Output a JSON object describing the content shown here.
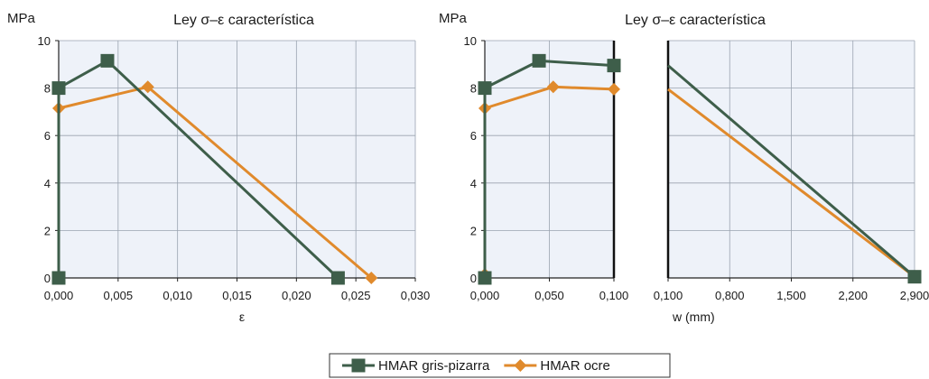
{
  "colors": {
    "green": "#3e5e4a",
    "orange": "#e08a2c",
    "plot_bg": "#eef2f9",
    "grid": "#9aa3b0"
  },
  "legend": [
    {
      "label": "HMAR gris-pizarra",
      "marker": "square",
      "color": "#3e5e4a"
    },
    {
      "label": "HMAR ocre",
      "marker": "diamond",
      "color": "#e08a2c"
    }
  ],
  "chart_data": [
    {
      "type": "line",
      "title": "Ley σ–ε característica",
      "ylabel": "MPa",
      "xlabel": "ε",
      "xlim": [
        0,
        0.03
      ],
      "ylim": [
        0,
        10
      ],
      "xticks": [
        0,
        0.005,
        0.01,
        0.015,
        0.02,
        0.025,
        0.03
      ],
      "xtick_labels": [
        "0,000",
        "0,005",
        "0,010",
        "0,015",
        "0,020",
        "0,025",
        "0,030"
      ],
      "yticks": [
        0,
        2,
        4,
        6,
        8,
        10
      ],
      "ytick_labels": [
        "0",
        "2",
        "4",
        "6",
        "8",
        "10"
      ],
      "grid": true,
      "series": [
        {
          "name": "HMAR gris-pizarra",
          "marker": "square",
          "x": [
            0,
            0,
            0.0041,
            0.0235
          ],
          "y": [
            0,
            8.0,
            9.15,
            0
          ]
        },
        {
          "name": "HMAR ocre",
          "marker": "diamond",
          "x": [
            0,
            0,
            0.0075,
            0.0263
          ],
          "y": [
            0,
            7.15,
            8.05,
            0
          ]
        }
      ]
    },
    {
      "type": "line",
      "title": "Ley σ–ε característica",
      "ylabel": "MPa",
      "xlabel": "",
      "xlim": [
        0,
        0.1
      ],
      "ylim": [
        0,
        10
      ],
      "xticks": [
        0,
        0.05,
        0.1
      ],
      "xtick_labels": [
        "0,000",
        "0,050",
        "0,100"
      ],
      "yticks": [
        0,
        2,
        4,
        6,
        8,
        10
      ],
      "ytick_labels": [
        "0",
        "2",
        "4",
        "6",
        "8",
        "10"
      ],
      "grid": true,
      "series": [
        {
          "name": "HMAR gris-pizarra",
          "marker": "square",
          "x": [
            0,
            0,
            0.042,
            0.1
          ],
          "y": [
            0,
            8.0,
            9.15,
            8.95
          ]
        },
        {
          "name": "HMAR ocre",
          "marker": "diamond",
          "x": [
            0,
            0,
            0.053,
            0.1
          ],
          "y": [
            0.15,
            7.15,
            8.05,
            7.95
          ]
        }
      ]
    },
    {
      "type": "line",
      "title": "",
      "ylabel": "",
      "xlabel": "w (mm)",
      "xlim": [
        0.1,
        2.9
      ],
      "ylim": [
        0,
        10
      ],
      "xticks": [
        0.1,
        0.8,
        1.5,
        2.2,
        2.9
      ],
      "xtick_labels": [
        "0,100",
        "0,800",
        "1,500",
        "2,200",
        "2,900"
      ],
      "yticks": [
        0,
        2,
        4,
        6,
        8,
        10
      ],
      "ytick_labels": [],
      "grid": true,
      "series": [
        {
          "name": "HMAR gris-pizarra",
          "marker": "square",
          "x": [
            0.1,
            2.9
          ],
          "y": [
            8.95,
            0.05
          ],
          "markers": [
            false,
            true
          ]
        },
        {
          "name": "HMAR ocre",
          "marker": "diamond",
          "x": [
            0.1,
            2.9
          ],
          "y": [
            7.95,
            0.05
          ],
          "markers": [
            false,
            true
          ]
        }
      ]
    }
  ]
}
